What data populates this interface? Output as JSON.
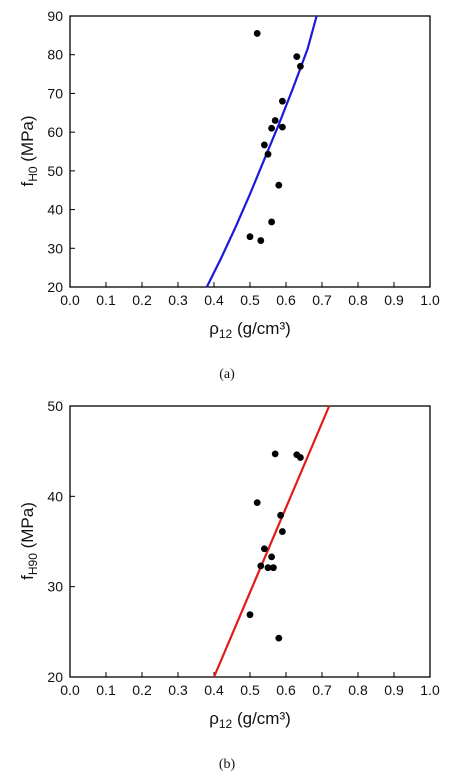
{
  "chart_data": [
    {
      "type": "scatter",
      "caption": "(a)",
      "xlabel": "ρ",
      "xlabel_sub": "12",
      "xlabel_unit": " (g/cm³)",
      "ylabel": "f",
      "ylabel_sub": "H0",
      "ylabel_unit": " (MPa)",
      "xlim": [
        0.0,
        1.0
      ],
      "ylim": [
        20,
        90
      ],
      "xticks": [
        "0.0",
        "0.1",
        "0.2",
        "0.3",
        "0.4",
        "0.5",
        "0.6",
        "0.7",
        "0.8",
        "0.9",
        "1.0"
      ],
      "yticks": [
        "20",
        "30",
        "40",
        "50",
        "60",
        "70",
        "80",
        "90"
      ],
      "fit_color": "#1a1adb",
      "fit_line": {
        "x": [
          0.38,
          0.42,
          0.46,
          0.5,
          0.54,
          0.58,
          0.62,
          0.66,
          0.685
        ],
        "y": [
          20.0,
          27.5,
          35.5,
          44.0,
          53.0,
          62.0,
          71.5,
          81.5,
          90.0
        ]
      },
      "points": {
        "x": [
          0.52,
          0.63,
          0.64,
          0.59,
          0.57,
          0.56,
          0.59,
          0.54,
          0.55,
          0.58,
          0.56,
          0.5,
          0.53
        ],
        "y": [
          85.5,
          79.5,
          77.0,
          68.0,
          63.0,
          61.0,
          61.3,
          56.7,
          54.3,
          46.3,
          36.8,
          33.0,
          32.0
        ]
      }
    },
    {
      "type": "scatter",
      "caption": "(b)",
      "xlabel": "ρ",
      "xlabel_sub": "12",
      "xlabel_unit": " (g/cm³)",
      "ylabel": "f",
      "ylabel_sub": "H90",
      "ylabel_unit": " (MPa)",
      "xlim": [
        0.0,
        1.0
      ],
      "ylim": [
        20,
        50
      ],
      "xticks": [
        "0.0",
        "0.1",
        "0.2",
        "0.3",
        "0.4",
        "0.5",
        "0.6",
        "0.7",
        "0.8",
        "0.9",
        "1.0"
      ],
      "yticks": [
        "20",
        "30",
        "40",
        "50"
      ],
      "fit_color": "#e01b1b",
      "fit_line": {
        "x": [
          0.4,
          0.72
        ],
        "y": [
          20.0,
          50.0
        ]
      },
      "points": {
        "x": [
          0.57,
          0.63,
          0.64,
          0.52,
          0.585,
          0.59,
          0.54,
          0.56,
          0.53,
          0.55,
          0.565,
          0.5,
          0.58
        ],
        "y": [
          44.7,
          44.6,
          44.3,
          39.3,
          37.9,
          36.1,
          34.2,
          33.3,
          32.3,
          32.1,
          32.1,
          26.9,
          24.3
        ]
      }
    }
  ]
}
